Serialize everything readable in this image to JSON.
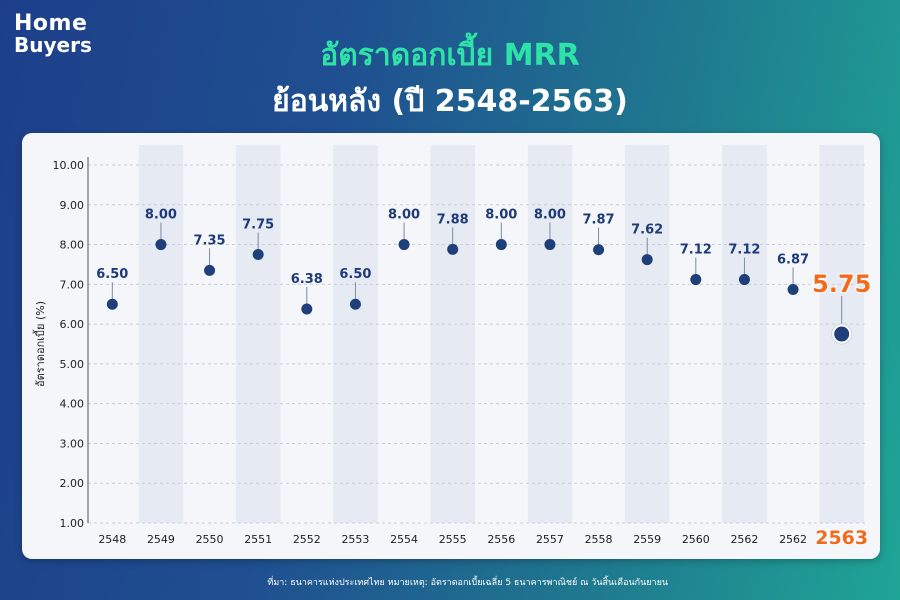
{
  "brand": {
    "line1": "Home",
    "line2": "Buyers"
  },
  "title": {
    "line1": "อัตราดอกเบี้ย MRR",
    "line2": "ย้อนหลัง (ปี 2548-2563)"
  },
  "footnote": "ที่มา: ธนาคารแห่งประเทศไทย  หมายเหตุ: อัตราดอกเบี้ยเฉลี่ย 5 ธนาคารพาณิชย์ ณ วันสิ้นเดือนกันยายน",
  "colors": {
    "title_accent": "#2ee3a8",
    "value_label": "#1e3a78",
    "highlight": "#f26b1d",
    "point": "#1e3f7a"
  },
  "chart_data": {
    "type": "scatter",
    "ylabel": "อัตราดอกเบี้ย (%)",
    "xlabel": "",
    "ylim": [
      1.0,
      10.0
    ],
    "yticks": [
      "1.00",
      "2.00",
      "3.00",
      "4.00",
      "5.00",
      "6.00",
      "7.00",
      "8.00",
      "9.00",
      "10.00"
    ],
    "categories": [
      "2548",
      "2549",
      "2550",
      "2551",
      "2552",
      "2553",
      "2554",
      "2555",
      "2556",
      "2557",
      "2558",
      "2559",
      "2560",
      "2562",
      "2562",
      "2563"
    ],
    "values": [
      6.5,
      8.0,
      7.35,
      7.75,
      6.38,
      6.5,
      8.0,
      7.88,
      8.0,
      8.0,
      7.87,
      7.62,
      7.12,
      7.12,
      6.87,
      5.75
    ],
    "labels": [
      "6.50",
      "8.00",
      "7.35",
      "7.75",
      "6.38",
      "6.50",
      "8.00",
      "7.88",
      "8.00",
      "8.00",
      "7.87",
      "7.62",
      "7.12",
      "7.12",
      "6.87",
      "5.75"
    ],
    "highlight_index": 15,
    "grid": true
  }
}
